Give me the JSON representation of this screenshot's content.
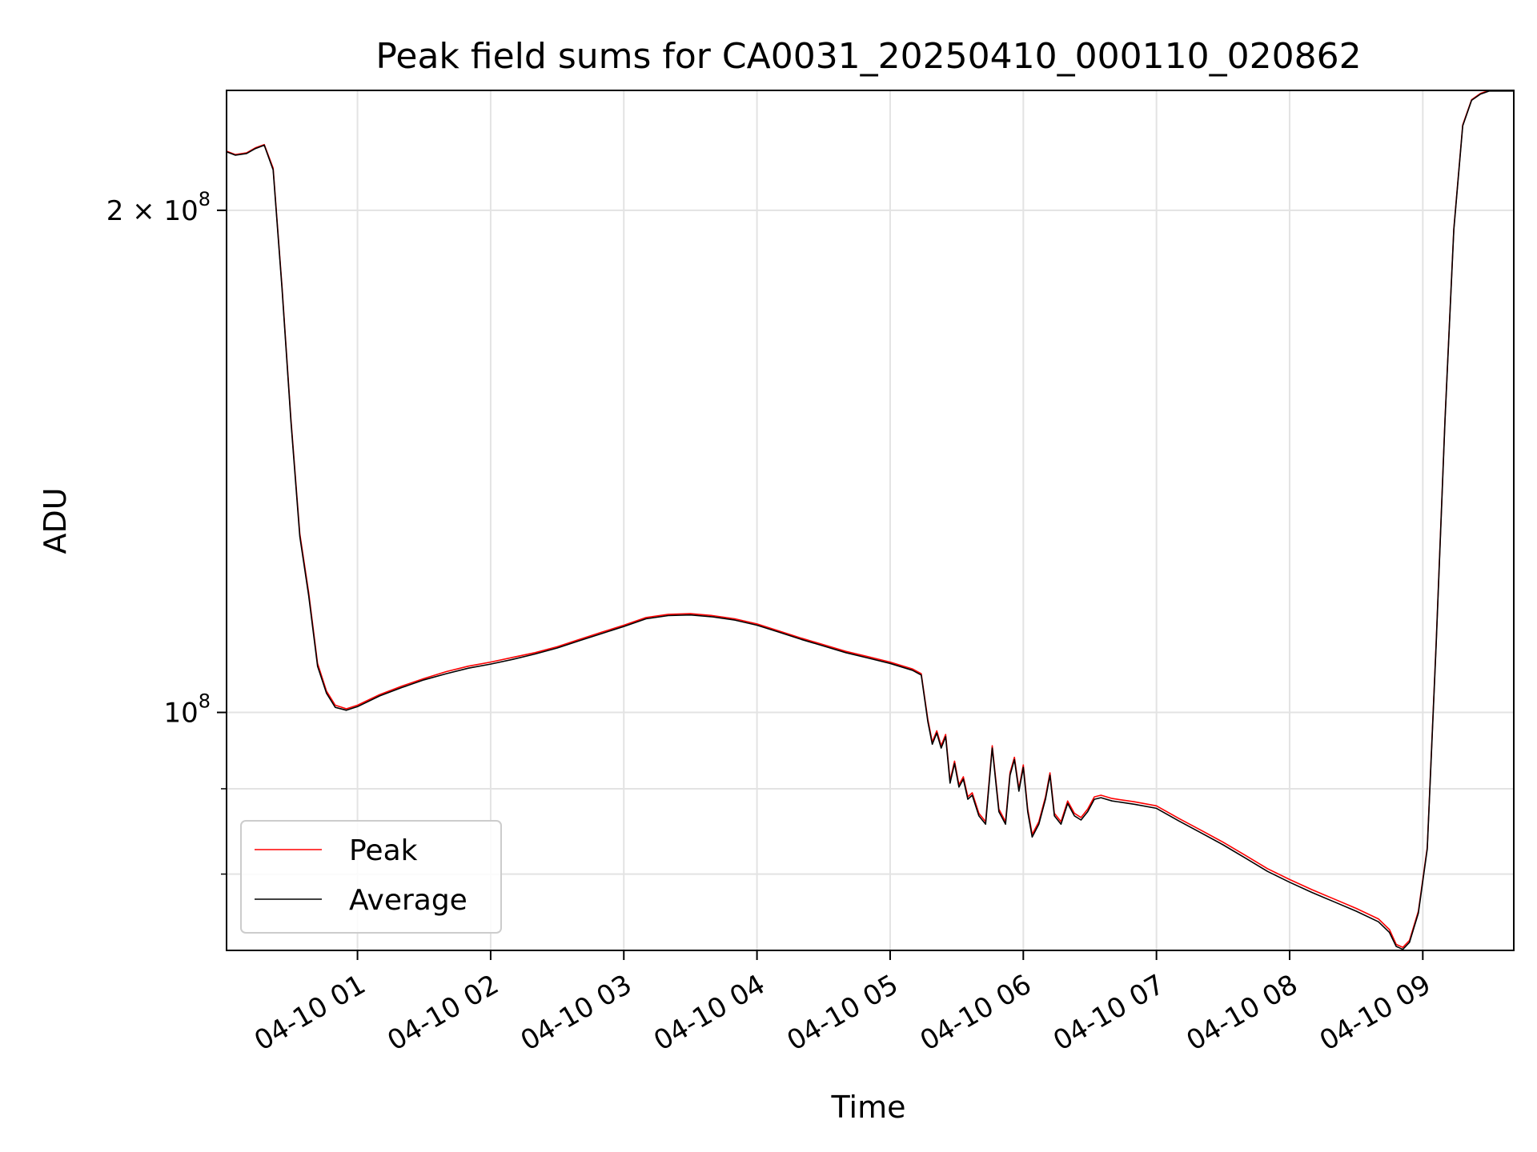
{
  "chart_data": {
    "type": "line",
    "title": "Peak field sums for CA0031_20250410_000110_020862",
    "xlabel": "Time",
    "ylabel": "ADU",
    "yscale": "log",
    "xlim": [
      "2025-04-10 00:01",
      "2025-04-10 09:41"
    ],
    "ylim": [
      72000000,
      236000000
    ],
    "grid": true,
    "legend": "lower-left",
    "x_ticks": [
      {
        "label": "04-10 01",
        "time": "01:00"
      },
      {
        "label": "04-10 02",
        "time": "02:00"
      },
      {
        "label": "04-10 03",
        "time": "03:00"
      },
      {
        "label": "04-10 04",
        "time": "04:00"
      },
      {
        "label": "04-10 05",
        "time": "05:00"
      },
      {
        "label": "04-10 06",
        "time": "06:00"
      },
      {
        "label": "04-10 07",
        "time": "07:00"
      },
      {
        "label": "04-10 08",
        "time": "08:00"
      },
      {
        "label": "04-10 09",
        "time": "09:00"
      }
    ],
    "y_ticks": [
      {
        "value": 200000000,
        "base": "2 × 10",
        "exp": "8"
      },
      {
        "value": 100000000,
        "base": "10",
        "exp": "8"
      }
    ],
    "y_minor_ticks": [
      90000000,
      80000000
    ],
    "series": [
      {
        "name": "Peak",
        "color": "#ff0000",
        "x": [
          "00:01",
          "00:05",
          "00:10",
          "00:14",
          "00:18",
          "00:22",
          "00:26",
          "00:30",
          "00:34",
          "00:38",
          "00:42",
          "00:46",
          "00:50",
          "00:55",
          "01:00",
          "01:10",
          "01:20",
          "01:30",
          "01:40",
          "01:50",
          "02:00",
          "02:10",
          "02:20",
          "02:30",
          "02:40",
          "02:50",
          "03:00",
          "03:10",
          "03:20",
          "03:30",
          "03:40",
          "03:50",
          "04:00",
          "04:10",
          "04:20",
          "04:30",
          "04:40",
          "04:50",
          "05:00",
          "05:10",
          "05:14",
          "05:17",
          "05:19",
          "05:21",
          "05:23",
          "05:25",
          "05:27",
          "05:29",
          "05:31",
          "05:33",
          "05:35",
          "05:37",
          "05:40",
          "05:43",
          "05:46",
          "05:49",
          "05:52",
          "05:54",
          "05:56",
          "05:58",
          "06:00",
          "06:02",
          "06:04",
          "06:07",
          "06:10",
          "06:12",
          "06:14",
          "06:17",
          "06:20",
          "06:23",
          "06:26",
          "06:29",
          "06:32",
          "06:35",
          "06:40",
          "06:50",
          "07:00",
          "07:10",
          "07:20",
          "07:30",
          "07:40",
          "07:50",
          "08:00",
          "08:10",
          "08:20",
          "08:30",
          "08:40",
          "08:45",
          "08:48",
          "08:51",
          "08:54",
          "08:58",
          "09:02",
          "09:06",
          "09:10",
          "09:14",
          "09:18",
          "09:22",
          "09:26",
          "09:30",
          "09:34",
          "09:38",
          "09:41"
        ],
        "values": [
          217000000,
          216000000,
          216500000,
          218000000,
          219000000,
          212000000,
          180000000,
          150000000,
          128000000,
          118000000,
          107000000,
          103000000,
          101000000,
          100500000,
          101000000,
          102500000,
          103700000,
          104800000,
          105800000,
          106600000,
          107200000,
          107900000,
          108600000,
          109500000,
          110600000,
          111700000,
          112800000,
          114000000,
          114500000,
          114600000,
          114300000,
          113800000,
          113000000,
          111900000,
          110800000,
          109800000,
          108800000,
          108000000,
          107200000,
          106200000,
          105500000,
          99000000,
          96000000,
          97500000,
          95500000,
          97000000,
          91000000,
          93500000,
          90500000,
          91500000,
          89000000,
          89500000,
          87000000,
          86000000,
          95500000,
          87500000,
          86000000,
          92000000,
          94000000,
          90000000,
          93000000,
          87500000,
          84500000,
          86000000,
          89000000,
          92000000,
          87000000,
          86000000,
          88500000,
          87000000,
          86500000,
          87500000,
          89000000,
          89200000,
          88800000,
          88400000,
          87900000,
          86400000,
          85000000,
          83600000,
          82100000,
          80600000,
          79400000,
          78300000,
          77300000,
          76300000,
          75200000,
          74100000,
          72600000,
          72300000,
          73000000,
          76000000,
          83000000,
          110000000,
          150000000,
          195000000,
          225000000,
          233000000,
          235000000,
          236000000,
          236000000,
          236000000,
          236000000
        ]
      },
      {
        "name": "Average",
        "color": "#000000",
        "x": [
          "00:01",
          "00:05",
          "00:10",
          "00:14",
          "00:18",
          "00:22",
          "00:26",
          "00:30",
          "00:34",
          "00:38",
          "00:42",
          "00:46",
          "00:50",
          "00:55",
          "01:00",
          "01:10",
          "01:20",
          "01:30",
          "01:40",
          "01:50",
          "02:00",
          "02:10",
          "02:20",
          "02:30",
          "02:40",
          "02:50",
          "03:00",
          "03:10",
          "03:20",
          "03:30",
          "03:40",
          "03:50",
          "04:00",
          "04:10",
          "04:20",
          "04:30",
          "04:40",
          "04:50",
          "05:00",
          "05:10",
          "05:14",
          "05:17",
          "05:19",
          "05:21",
          "05:23",
          "05:25",
          "05:27",
          "05:29",
          "05:31",
          "05:33",
          "05:35",
          "05:37",
          "05:40",
          "05:43",
          "05:46",
          "05:49",
          "05:52",
          "05:54",
          "05:56",
          "05:58",
          "06:00",
          "06:02",
          "06:04",
          "06:07",
          "06:10",
          "06:12",
          "06:14",
          "06:17",
          "06:20",
          "06:23",
          "06:26",
          "06:29",
          "06:32",
          "06:35",
          "06:40",
          "06:50",
          "07:00",
          "07:10",
          "07:20",
          "07:30",
          "07:40",
          "07:50",
          "08:00",
          "08:10",
          "08:20",
          "08:30",
          "08:40",
          "08:45",
          "08:48",
          "08:51",
          "08:54",
          "08:58",
          "09:02",
          "09:06",
          "09:10",
          "09:14",
          "09:18",
          "09:22",
          "09:26",
          "09:30",
          "09:34",
          "09:38",
          "09:41"
        ],
        "values": [
          216800000,
          215800000,
          216300000,
          217800000,
          218800000,
          211500000,
          179500000,
          149500000,
          127500000,
          117500000,
          106600000,
          102700000,
          100700000,
          100300000,
          100800000,
          102300000,
          103500000,
          104600000,
          105500000,
          106300000,
          106900000,
          107600000,
          108400000,
          109300000,
          110400000,
          111500000,
          112600000,
          113800000,
          114300000,
          114400000,
          114100000,
          113600000,
          112800000,
          111700000,
          110600000,
          109600000,
          108600000,
          107800000,
          107000000,
          106000000,
          105300000,
          98700000,
          95700000,
          97200000,
          95200000,
          96700000,
          90700000,
          93200000,
          90200000,
          91200000,
          88700000,
          89200000,
          86700000,
          85700000,
          95200000,
          87200000,
          85700000,
          91700000,
          93700000,
          89700000,
          92700000,
          87200000,
          84200000,
          85700000,
          88700000,
          91700000,
          86700000,
          85700000,
          88200000,
          86700000,
          86200000,
          87200000,
          88700000,
          88900000,
          88500000,
          88100000,
          87600000,
          86100000,
          84700000,
          83300000,
          81800000,
          80300000,
          79100000,
          78000000,
          77000000,
          76000000,
          74900000,
          73800000,
          72400000,
          72100000,
          72800000,
          75800000,
          82800000,
          109700000,
          149700000,
          194700000,
          224700000,
          232800000,
          234800000,
          235800000,
          235800000,
          235800000,
          235800000
        ]
      }
    ]
  }
}
